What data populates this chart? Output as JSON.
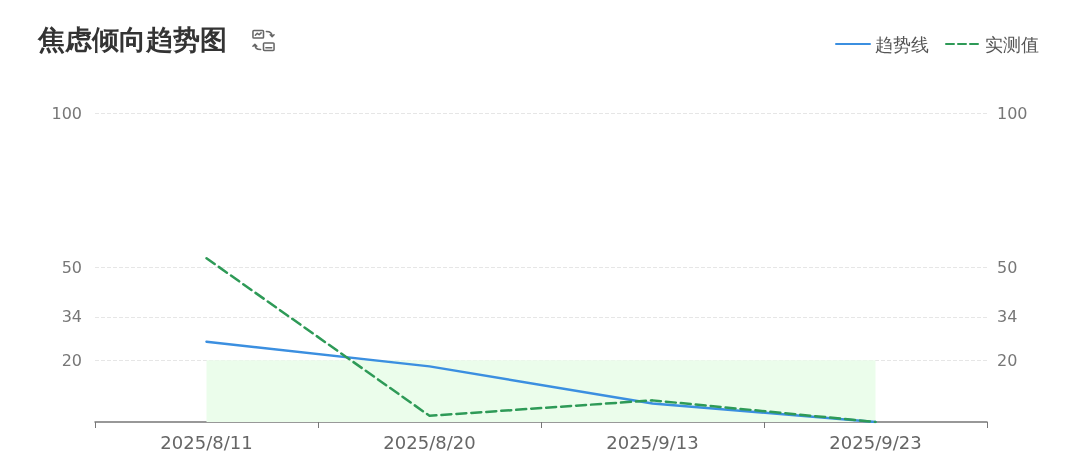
{
  "chart_data": {
    "type": "line",
    "title": "焦虑倾向趋势图",
    "categories": [
      "2025/8/11",
      "2025/8/20",
      "2025/9/13",
      "2025/9/23"
    ],
    "series": [
      {
        "name": "趋势线",
        "color": "#3b8fe0",
        "values": [
          26,
          18,
          6,
          0
        ],
        "line_style": "solid"
      },
      {
        "name": "实测值",
        "color": "#2e9a57",
        "values": [
          53,
          2,
          7,
          0
        ],
        "line_style": "dashed"
      }
    ],
    "ylim": [
      0,
      100
    ],
    "yticks": [
      20,
      34,
      50,
      100
    ],
    "y2lim": [
      0,
      100
    ],
    "y2ticks": [
      20,
      34,
      50,
      100
    ],
    "bands": [
      {
        "axis": "y",
        "from": 0,
        "to": 20,
        "color": "#ebfdeb"
      }
    ],
    "grid": "y",
    "legend": "top right"
  }
}
